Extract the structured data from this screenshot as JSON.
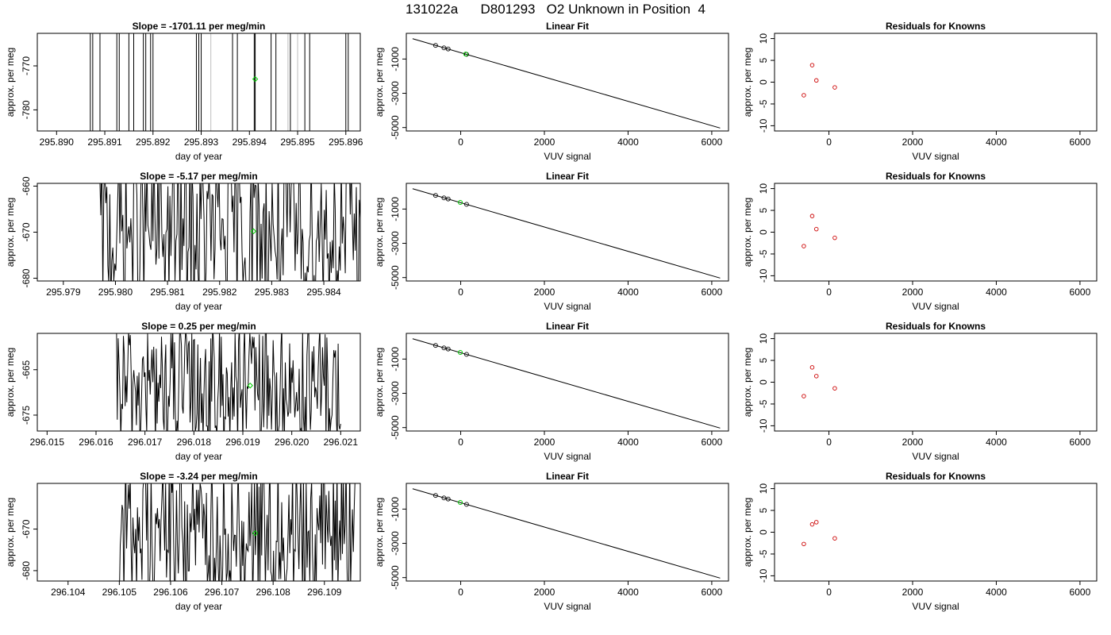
{
  "figure": {
    "title": "131022a      D801293   O2 Unknown in Position  4",
    "colors": {
      "trace": "#000000",
      "gray_trace": "#bdbdbd",
      "unknown_point": "#00cc00",
      "known_point": "#000000",
      "residual_point": "#cc0000",
      "fit_line": "#000000"
    }
  },
  "chart_data": [
    {
      "type": "line",
      "panel": "timeseries",
      "row": 1,
      "title": "Slope =  -1701.11  per meg/min",
      "xlabel": "day of year",
      "ylabel": "approx. per meg",
      "xlim": [
        295.8896,
        295.8963
      ],
      "ylim": [
        -784.8,
        -762.6
      ],
      "xticks": [
        295.89,
        295.891,
        295.892,
        295.893,
        295.894,
        295.895,
        295.896
      ],
      "xtick_labels": [
        "295.890",
        "295.891",
        "295.892",
        "295.893",
        "295.894",
        "295.895",
        "295.896"
      ],
      "yticks": [
        -770,
        -780
      ],
      "ytick_labels": [
        "-770",
        "-780"
      ],
      "trace_style": "vertical",
      "vertical_lines_x": [
        295.8907,
        295.89075,
        295.8909,
        295.89125,
        295.8913,
        295.8915,
        295.8916,
        295.8918,
        295.89185,
        295.89195,
        295.892,
        295.8929,
        295.89295,
        295.893,
        295.89365,
        295.89375,
        295.8941,
        295.89412,
        295.89445,
        295.89455,
        295.89485,
        295.89515,
        295.89525,
        295.896,
        295.89605
      ],
      "gray_lines_x": [
        295.8932,
        295.8948,
        295.895
      ],
      "unknown_point": {
        "x": 295.89412,
        "y": -773.0
      }
    },
    {
      "type": "line",
      "panel": "linear_fit",
      "row": 1,
      "title": "Linear Fit",
      "xlabel": "VUV signal",
      "ylabel": "approx. per meg",
      "xlim": [
        -1300,
        6400
      ],
      "ylim": [
        -5200,
        500
      ],
      "xticks": [
        0,
        2000,
        4000,
        6000
      ],
      "xtick_labels": [
        "0",
        "2000",
        "4000",
        "6000"
      ],
      "yticks": [
        -1000,
        -3000,
        -5000
      ],
      "ytick_labels": [
        "-1000",
        "-3000",
        "-5000"
      ],
      "fit_line": {
        "x": [
          -1150,
          6200
        ],
        "y": [
          188,
          -5030
        ]
      },
      "knowns": [
        {
          "x": -600,
          "y": -205
        },
        {
          "x": -400,
          "y": -350
        },
        {
          "x": -300,
          "y": -412
        },
        {
          "x": 140,
          "y": -726
        }
      ],
      "unknown": {
        "x": 120,
        "y": -713
      }
    },
    {
      "type": "scatter",
      "panel": "residuals",
      "row": 1,
      "title": "Residuals for Knowns",
      "xlabel": "VUV signal",
      "ylabel": "approx. per meg",
      "xlim": [
        -1300,
        6400
      ],
      "ylim": [
        -11.2,
        11.2
      ],
      "xticks": [
        0,
        2000,
        4000,
        6000
      ],
      "xtick_labels": [
        "0",
        "2000",
        "4000",
        "6000"
      ],
      "yticks": [
        10,
        5,
        0,
        -5,
        -10
      ],
      "ytick_labels": [
        "10",
        "5",
        "0",
        "-5",
        "-10"
      ],
      "points": [
        {
          "x": -600,
          "y": -3.0
        },
        {
          "x": -400,
          "y": 3.9
        },
        {
          "x": -300,
          "y": 0.4
        },
        {
          "x": 140,
          "y": -1.2
        }
      ]
    },
    {
      "type": "line",
      "panel": "timeseries",
      "row": 2,
      "title": "Slope =  -5.17  per meg/min",
      "xlabel": "day of year",
      "ylabel": "approx. per meg",
      "xlim": [
        295.9785,
        295.9847
      ],
      "ylim": [
        -680.6,
        -659.4
      ],
      "xticks": [
        295.979,
        295.98,
        295.981,
        295.982,
        295.983,
        295.984
      ],
      "xtick_labels": [
        "295.979",
        "295.980",
        "295.981",
        "295.982",
        "295.983",
        "295.984"
      ],
      "yticks": [
        -660,
        -670,
        -680
      ],
      "ytick_labels": [
        "-660",
        "-670",
        "-680"
      ],
      "trace_style": "noisy",
      "trace_range": [
        295.9797,
        295.9847
      ],
      "trace_center": -670,
      "trace_amplitude": 18,
      "unknown_point": {
        "x": 295.98265,
        "y": -669.8
      }
    },
    {
      "type": "line",
      "panel": "linear_fit",
      "row": 2,
      "title": "Linear Fit",
      "xlabel": "VUV signal",
      "ylabel": "approx. per meg",
      "xlim": [
        -1300,
        6400
      ],
      "ylim": [
        -5200,
        500
      ],
      "xticks": [
        0,
        2000,
        4000,
        6000
      ],
      "xtick_labels": [
        "0",
        "2000",
        "4000",
        "6000"
      ],
      "yticks": [
        -1000,
        -3000,
        -5000
      ],
      "ytick_labels": [
        "-1000",
        "-3000",
        "-5000"
      ],
      "fit_line": {
        "x": [
          -1150,
          6200
        ],
        "y": [
          188,
          -5030
        ]
      },
      "knowns": [
        {
          "x": -600,
          "y": -205
        },
        {
          "x": -400,
          "y": -350
        },
        {
          "x": -300,
          "y": -412
        },
        {
          "x": 140,
          "y": -726
        }
      ],
      "unknown": {
        "x": -10,
        "y": -610
      }
    },
    {
      "type": "scatter",
      "panel": "residuals",
      "row": 2,
      "title": "Residuals for Knowns",
      "xlabel": "VUV signal",
      "ylabel": "approx. per meg",
      "xlim": [
        -1300,
        6400
      ],
      "ylim": [
        -11.2,
        11.2
      ],
      "xticks": [
        0,
        2000,
        4000,
        6000
      ],
      "xtick_labels": [
        "0",
        "2000",
        "4000",
        "6000"
      ],
      "yticks": [
        10,
        5,
        0,
        -5,
        -10
      ],
      "ytick_labels": [
        "10",
        "5",
        "0",
        "-5",
        "-10"
      ],
      "points": [
        {
          "x": -600,
          "y": -3.2
        },
        {
          "x": -400,
          "y": 3.7
        },
        {
          "x": -300,
          "y": 0.7
        },
        {
          "x": 140,
          "y": -1.3
        }
      ]
    },
    {
      "type": "line",
      "panel": "timeseries",
      "row": 3,
      "title": "Slope =  0.25  per meg/min",
      "xlabel": "day of year",
      "ylabel": "approx. per meg",
      "xlim": [
        296.0148,
        296.0214
      ],
      "ylim": [
        -678.5,
        -657.0
      ],
      "xticks": [
        296.015,
        296.016,
        296.017,
        296.018,
        296.019,
        296.02,
        296.021
      ],
      "xtick_labels": [
        "296.015",
        "296.016",
        "296.017",
        "296.018",
        "296.019",
        "296.020",
        "296.021"
      ],
      "yticks": [
        -665,
        -675
      ],
      "ytick_labels": [
        "-665",
        "-675"
      ],
      "trace_style": "noisy",
      "trace_range": [
        296.0164,
        296.021
      ],
      "trace_center": -669,
      "trace_amplitude": 14,
      "unknown_point": {
        "x": 296.01915,
        "y": -668.5
      }
    },
    {
      "type": "line",
      "panel": "linear_fit",
      "row": 3,
      "title": "Linear Fit",
      "xlabel": "VUV signal",
      "ylabel": "approx. per meg",
      "xlim": [
        -1300,
        6400
      ],
      "ylim": [
        -5200,
        500
      ],
      "xticks": [
        0,
        2000,
        4000,
        6000
      ],
      "xtick_labels": [
        "0",
        "2000",
        "4000",
        "6000"
      ],
      "yticks": [
        -1000,
        -3000,
        -5000
      ],
      "ytick_labels": [
        "-1000",
        "-3000",
        "-5000"
      ],
      "fit_line": {
        "x": [
          -1150,
          6200
        ],
        "y": [
          188,
          -5030
        ]
      },
      "knowns": [
        {
          "x": -600,
          "y": -205
        },
        {
          "x": -400,
          "y": -350
        },
        {
          "x": -300,
          "y": -412
        },
        {
          "x": 140,
          "y": -726
        }
      ],
      "unknown": {
        "x": -10,
        "y": -610
      }
    },
    {
      "type": "scatter",
      "panel": "residuals",
      "row": 3,
      "title": "Residuals for Knowns",
      "xlabel": "VUV signal",
      "ylabel": "approx. per meg",
      "xlim": [
        -1300,
        6400
      ],
      "ylim": [
        -11.2,
        11.2
      ],
      "xticks": [
        0,
        2000,
        4000,
        6000
      ],
      "xtick_labels": [
        "0",
        "2000",
        "4000",
        "6000"
      ],
      "yticks": [
        10,
        5,
        0,
        -5,
        -10
      ],
      "ytick_labels": [
        "10",
        "5",
        "0",
        "-5",
        "-10"
      ],
      "points": [
        {
          "x": -600,
          "y": -3.2
        },
        {
          "x": -400,
          "y": 3.4
        },
        {
          "x": -300,
          "y": 1.4
        },
        {
          "x": 140,
          "y": -1.4
        }
      ]
    },
    {
      "type": "line",
      "panel": "timeseries",
      "row": 4,
      "title": "Slope =  -3.24  per meg/min",
      "xlabel": "day of year",
      "ylabel": "approx. per meg",
      "xlim": [
        296.1034,
        296.1097
      ],
      "ylim": [
        -682.5,
        -659.0
      ],
      "xticks": [
        296.104,
        296.105,
        296.106,
        296.107,
        296.108,
        296.109
      ],
      "xtick_labels": [
        "296.104",
        "296.105",
        "296.106",
        "296.107",
        "296.108",
        "296.109"
      ],
      "yticks": [
        -670,
        -680
      ],
      "ytick_labels": [
        "-670",
        "-680"
      ],
      "trace_style": "noisy",
      "trace_range": [
        296.105,
        296.1096
      ],
      "trace_center": -670,
      "trace_amplitude": 18,
      "unknown_point": {
        "x": 296.10765,
        "y": -671.0
      }
    },
    {
      "type": "line",
      "panel": "linear_fit",
      "row": 4,
      "title": "Linear Fit",
      "xlabel": "VUV signal",
      "ylabel": "approx. per meg",
      "xlim": [
        -1300,
        6400
      ],
      "ylim": [
        -5200,
        500
      ],
      "xticks": [
        0,
        2000,
        4000,
        6000
      ],
      "xtick_labels": [
        "0",
        "2000",
        "4000",
        "6000"
      ],
      "yticks": [
        -1000,
        -3000,
        -5000
      ],
      "ytick_labels": [
        "-1000",
        "-3000",
        "-5000"
      ],
      "fit_line": {
        "x": [
          -1150,
          6200
        ],
        "y": [
          188,
          -5030
        ]
      },
      "knowns": [
        {
          "x": -600,
          "y": -205
        },
        {
          "x": -400,
          "y": -350
        },
        {
          "x": -300,
          "y": -412
        },
        {
          "x": 140,
          "y": -726
        }
      ],
      "unknown": {
        "x": -10,
        "y": -610
      }
    },
    {
      "type": "scatter",
      "panel": "residuals",
      "row": 4,
      "title": "Residuals for Knowns",
      "xlabel": "VUV signal",
      "ylabel": "approx. per meg",
      "xlim": [
        -1300,
        6400
      ],
      "ylim": [
        -11.2,
        11.2
      ],
      "xticks": [
        0,
        2000,
        4000,
        6000
      ],
      "xtick_labels": [
        "0",
        "2000",
        "4000",
        "6000"
      ],
      "yticks": [
        10,
        5,
        0,
        -5,
        -10
      ],
      "ytick_labels": [
        "10",
        "5",
        "0",
        "-5",
        "-10"
      ],
      "points": [
        {
          "x": -600,
          "y": -2.7
        },
        {
          "x": -400,
          "y": 1.8
        },
        {
          "x": -300,
          "y": 2.3
        },
        {
          "x": 140,
          "y": -1.4
        }
      ]
    }
  ]
}
